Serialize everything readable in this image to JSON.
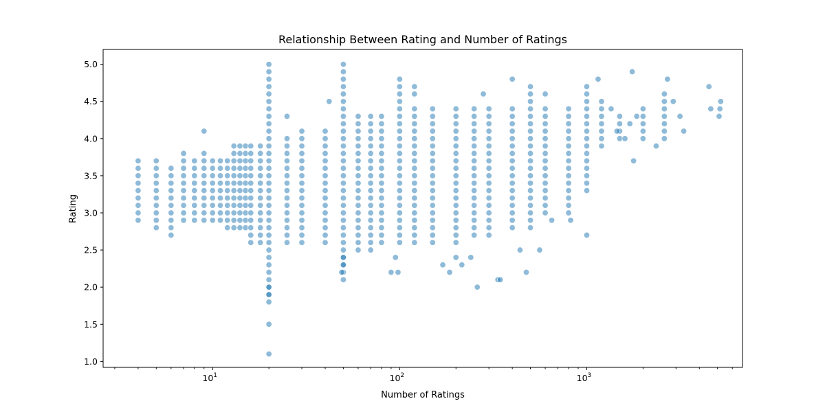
{
  "chart_data": {
    "type": "scatter",
    "title": "Relationship Between Rating and Number of Ratings",
    "xlabel": "Number of Ratings",
    "ylabel": "Rating",
    "xscale": "log",
    "xlim": [
      2.6,
      6800
    ],
    "ylim": [
      0.92,
      5.2
    ],
    "xticks": [
      {
        "value": 10,
        "base": "10",
        "exp": "1"
      },
      {
        "value": 100,
        "base": "10",
        "exp": "2"
      },
      {
        "value": 1000,
        "base": "10",
        "exp": "3"
      }
    ],
    "yticks": [
      "1.0",
      "1.5",
      "2.0",
      "2.5",
      "3.0",
      "3.5",
      "4.0",
      "4.5",
      "5.0"
    ],
    "grid": false,
    "marker_color": "#1f77b4",
    "marker_alpha": 0.5,
    "column_points": [
      {
        "x": 4,
        "y_min": 2.9,
        "y_max": 3.7
      },
      {
        "x": 5,
        "y_min": 2.8,
        "y_max": 3.7
      },
      {
        "x": 6,
        "y_min": 2.7,
        "y_max": 3.6
      },
      {
        "x": 7,
        "y_min": 2.9,
        "y_max": 3.8
      },
      {
        "x": 8,
        "y_min": 2.9,
        "y_max": 3.7
      },
      {
        "x": 9,
        "y_min": 2.9,
        "y_max": 3.8
      },
      {
        "x": 10,
        "y_min": 2.9,
        "y_max": 3.7
      },
      {
        "x": 11,
        "y_min": 2.9,
        "y_max": 3.7
      },
      {
        "x": 12,
        "y_min": 2.8,
        "y_max": 3.7
      },
      {
        "x": 13,
        "y_min": 2.8,
        "y_max": 3.9
      },
      {
        "x": 14,
        "y_min": 2.8,
        "y_max": 3.9
      },
      {
        "x": 15,
        "y_min": 2.8,
        "y_max": 3.9
      },
      {
        "x": 16,
        "y_min": 2.6,
        "y_max": 3.9
      },
      {
        "x": 18,
        "y_min": 2.6,
        "y_max": 3.9
      },
      {
        "x": 20,
        "y_min": 1.8,
        "y_max": 5.0
      },
      {
        "x": 25,
        "y_min": 2.6,
        "y_max": 4.0
      },
      {
        "x": 30,
        "y_min": 2.6,
        "y_max": 4.1
      },
      {
        "x": 40,
        "y_min": 2.6,
        "y_max": 4.1
      },
      {
        "x": 50,
        "y_min": 2.1,
        "y_max": 5.0
      },
      {
        "x": 60,
        "y_min": 2.5,
        "y_max": 4.3
      },
      {
        "x": 70,
        "y_min": 2.5,
        "y_max": 4.3
      },
      {
        "x": 80,
        "y_min": 2.6,
        "y_max": 4.3
      },
      {
        "x": 100,
        "y_min": 2.6,
        "y_max": 4.8
      },
      {
        "x": 120,
        "y_min": 2.6,
        "y_max": 4.4
      },
      {
        "x": 150,
        "y_min": 2.6,
        "y_max": 4.4
      },
      {
        "x": 200,
        "y_min": 2.6,
        "y_max": 4.4
      },
      {
        "x": 250,
        "y_min": 2.7,
        "y_max": 4.4
      },
      {
        "x": 300,
        "y_min": 2.7,
        "y_max": 4.4
      },
      {
        "x": 400,
        "y_min": 2.8,
        "y_max": 4.4
      },
      {
        "x": 500,
        "y_min": 2.8,
        "y_max": 4.7
      },
      {
        "x": 600,
        "y_min": 3.0,
        "y_max": 4.4
      },
      {
        "x": 800,
        "y_min": 3.0,
        "y_max": 4.4
      },
      {
        "x": 1000,
        "y_min": 3.3,
        "y_max": 4.7
      },
      {
        "x": 1200,
        "y_min": 3.9,
        "y_max": 4.5
      },
      {
        "x": 1500,
        "y_min": 4.0,
        "y_max": 4.3
      },
      {
        "x": 2000,
        "y_min": 4.0,
        "y_max": 4.4
      },
      {
        "x": 2600,
        "y_min": 4.0,
        "y_max": 4.5
      }
    ],
    "outliers": [
      {
        "x": 20,
        "y": 1.1
      },
      {
        "x": 20,
        "y": 1.5
      },
      {
        "x": 20,
        "y": 1.9
      },
      {
        "x": 20,
        "y": 2.0
      },
      {
        "x": 9,
        "y": 4.1
      },
      {
        "x": 25,
        "y": 4.3
      },
      {
        "x": 42,
        "y": 4.5
      },
      {
        "x": 49,
        "y": 2.2
      },
      {
        "x": 50,
        "y": 2.3
      },
      {
        "x": 50,
        "y": 2.4
      },
      {
        "x": 90,
        "y": 2.2
      },
      {
        "x": 98,
        "y": 2.2
      },
      {
        "x": 95,
        "y": 2.4
      },
      {
        "x": 170,
        "y": 2.3
      },
      {
        "x": 185,
        "y": 2.2
      },
      {
        "x": 200,
        "y": 2.4
      },
      {
        "x": 215,
        "y": 2.3
      },
      {
        "x": 240,
        "y": 2.4
      },
      {
        "x": 260,
        "y": 2.0
      },
      {
        "x": 335,
        "y": 2.1
      },
      {
        "x": 345,
        "y": 2.1
      },
      {
        "x": 440,
        "y": 2.5
      },
      {
        "x": 475,
        "y": 2.2
      },
      {
        "x": 560,
        "y": 2.5
      },
      {
        "x": 120,
        "y": 4.6
      },
      {
        "x": 280,
        "y": 4.6
      },
      {
        "x": 400,
        "y": 4.8
      },
      {
        "x": 600,
        "y": 4.6
      },
      {
        "x": 120,
        "y": 4.7
      },
      {
        "x": 820,
        "y": 2.9
      },
      {
        "x": 650,
        "y": 2.9
      },
      {
        "x": 1000,
        "y": 2.7
      },
      {
        "x": 1150,
        "y": 4.8
      },
      {
        "x": 1750,
        "y": 4.9
      },
      {
        "x": 1780,
        "y": 3.7
      },
      {
        "x": 2350,
        "y": 3.9
      },
      {
        "x": 2700,
        "y": 4.8
      },
      {
        "x": 2600,
        "y": 4.6
      },
      {
        "x": 2900,
        "y": 4.5
      },
      {
        "x": 3150,
        "y": 4.3
      },
      {
        "x": 3300,
        "y": 4.1
      },
      {
        "x": 4500,
        "y": 4.7
      },
      {
        "x": 4600,
        "y": 4.4
      },
      {
        "x": 5100,
        "y": 4.3
      },
      {
        "x": 5150,
        "y": 4.4
      },
      {
        "x": 5200,
        "y": 4.5
      },
      {
        "x": 1700,
        "y": 4.2
      },
      {
        "x": 1450,
        "y": 4.1
      },
      {
        "x": 1350,
        "y": 4.4
      },
      {
        "x": 1850,
        "y": 4.3
      },
      {
        "x": 1600,
        "y": 4.0
      }
    ]
  }
}
